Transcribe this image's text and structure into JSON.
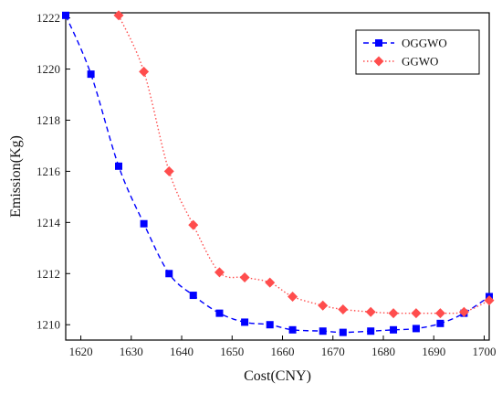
{
  "chart_data": {
    "type": "line",
    "xlabel": "Cost(CNY)",
    "ylabel": "Emission(Kg)",
    "xlim": [
      1617,
      1701
    ],
    "ylim": [
      1209.4,
      1222.2
    ],
    "xticks": [
      1620,
      1630,
      1640,
      1650,
      1660,
      1670,
      1680,
      1690,
      1700
    ],
    "yticks": [
      1210,
      1212,
      1214,
      1216,
      1218,
      1220,
      1222
    ],
    "grid": false,
    "legend_position": "top-right",
    "series": [
      {
        "name": "OGGWO",
        "color": "#0000ff",
        "line_style": "dashed",
        "marker": "square",
        "x": [
          1617,
          1622,
          1627.5,
          1632.5,
          1637.5,
          1642.3,
          1647.5,
          1652.5,
          1657.5,
          1662,
          1668,
          1672,
          1677.5,
          1682,
          1686.5,
          1691.3,
          1696,
          1701
        ],
        "y": [
          1222.1,
          1219.8,
          1216.2,
          1213.95,
          1212.0,
          1211.15,
          1210.45,
          1210.1,
          1210.0,
          1209.8,
          1209.75,
          1209.7,
          1209.75,
          1209.8,
          1209.85,
          1210.05,
          1210.45,
          1211.1
        ]
      },
      {
        "name": "GGWO",
        "color": "#ff4d4d",
        "line_style": "dotted",
        "marker": "diamond",
        "x": [
          1627.5,
          1632.5,
          1637.5,
          1642.3,
          1647.5,
          1652.5,
          1657.5,
          1662,
          1668,
          1672,
          1677.5,
          1682,
          1686.5,
          1691.3,
          1696,
          1701
        ],
        "y": [
          1222.1,
          1219.9,
          1216.0,
          1213.9,
          1212.05,
          1211.85,
          1211.65,
          1211.1,
          1210.75,
          1210.6,
          1210.5,
          1210.45,
          1210.45,
          1210.45,
          1210.5,
          1210.95
        ]
      }
    ]
  }
}
